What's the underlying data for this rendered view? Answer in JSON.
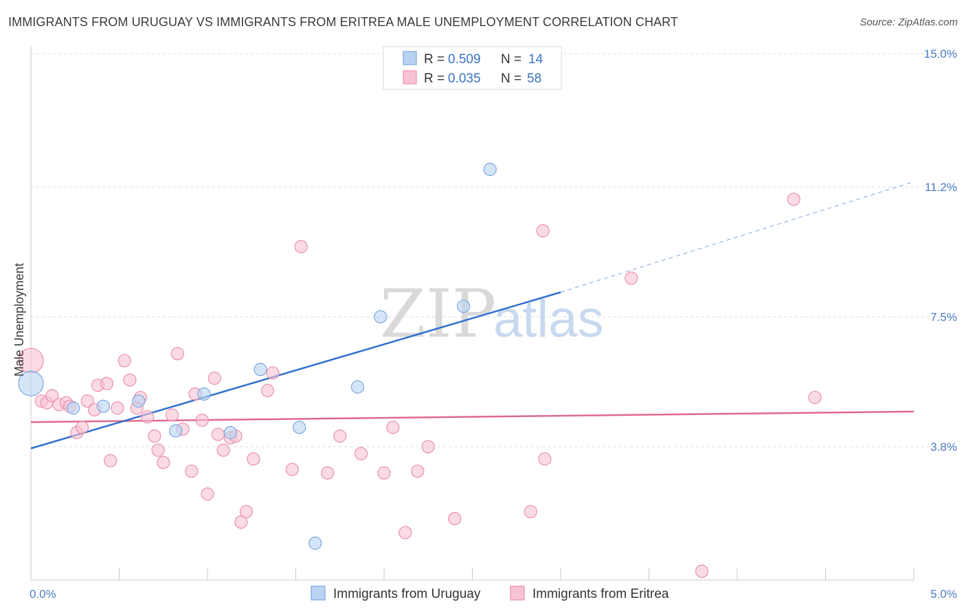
{
  "title": "IMMIGRANTS FROM URUGUAY VS IMMIGRANTS FROM ERITREA MALE UNEMPLOYMENT CORRELATION CHART",
  "source": "Source: ZipAtlas.com",
  "watermark": {
    "zip": "ZIP",
    "atlas": "atlas"
  },
  "colors": {
    "blue_fill": "#b9d3f3",
    "blue_stroke": "#7aa7de",
    "blue_line": "#2f6fcf",
    "pink_fill": "#f7c3d2",
    "pink_stroke": "#ea8fac",
    "pink_line": "#e06890",
    "grid": "#dddddd",
    "tick": "#4a7cc0"
  },
  "legend": {
    "rows": [
      {
        "r_label": "R =",
        "r_value": "0.509",
        "n_label": "N =",
        "n_value": "14"
      },
      {
        "r_label": "R =",
        "r_value": "0.035",
        "n_label": "N =",
        "n_value": "58"
      }
    ]
  },
  "chart_data": {
    "type": "scatter",
    "title": "IMMIGRANTS FROM URUGUAY VS IMMIGRANTS FROM ERITREA MALE UNEMPLOYMENT CORRELATION CHART",
    "xlabel": "",
    "ylabel": "Male Unemployment",
    "xlim": [
      0,
      5.0
    ],
    "ylim": [
      0,
      15.0
    ],
    "x_tick_labels": [
      {
        "value": 0,
        "label": "0.0%"
      },
      {
        "value": 5.0,
        "label": "5.0%"
      }
    ],
    "y_tick_labels": [
      {
        "value": 3.8,
        "label": "3.8%"
      },
      {
        "value": 7.5,
        "label": "7.5%"
      },
      {
        "value": 11.2,
        "label": "11.2%"
      },
      {
        "value": 15.0,
        "label": "15.0%"
      }
    ],
    "series": [
      {
        "name": "Immigrants from Uruguay",
        "color": "blue",
        "points": [
          {
            "x": 0.0,
            "y": 5.6,
            "size": "large"
          },
          {
            "x": 0.24,
            "y": 4.9
          },
          {
            "x": 0.41,
            "y": 4.95
          },
          {
            "x": 0.61,
            "y": 5.1
          },
          {
            "x": 0.82,
            "y": 4.25
          },
          {
            "x": 0.98,
            "y": 5.3
          },
          {
            "x": 1.13,
            "y": 4.2
          },
          {
            "x": 1.3,
            "y": 6.0
          },
          {
            "x": 1.52,
            "y": 4.35
          },
          {
            "x": 1.61,
            "y": 1.05
          },
          {
            "x": 1.85,
            "y": 5.5
          },
          {
            "x": 1.98,
            "y": 7.5
          },
          {
            "x": 2.45,
            "y": 7.8
          },
          {
            "x": 2.6,
            "y": 11.7
          }
        ],
        "trend": {
          "x": [
            0.0,
            3.0
          ],
          "y": [
            3.75,
            8.2
          ],
          "dashed_extension": {
            "x": [
              3.0,
              5.0
            ],
            "y": [
              8.2,
              11.35
            ]
          }
        }
      },
      {
        "name": "Immigrants from Eritrea",
        "color": "pink",
        "points": [
          {
            "x": 0.0,
            "y": 6.25,
            "size": "large"
          },
          {
            "x": 0.06,
            "y": 5.1
          },
          {
            "x": 0.09,
            "y": 5.05
          },
          {
            "x": 0.12,
            "y": 5.25
          },
          {
            "x": 0.16,
            "y": 5.0
          },
          {
            "x": 0.2,
            "y": 5.05
          },
          {
            "x": 0.22,
            "y": 4.95
          },
          {
            "x": 0.26,
            "y": 4.2
          },
          {
            "x": 0.29,
            "y": 4.35
          },
          {
            "x": 0.32,
            "y": 5.1
          },
          {
            "x": 0.36,
            "y": 4.85
          },
          {
            "x": 0.38,
            "y": 5.55
          },
          {
            "x": 0.43,
            "y": 5.6
          },
          {
            "x": 0.45,
            "y": 3.4
          },
          {
            "x": 0.49,
            "y": 4.9
          },
          {
            "x": 0.53,
            "y": 6.25
          },
          {
            "x": 0.56,
            "y": 5.7
          },
          {
            "x": 0.6,
            "y": 4.9
          },
          {
            "x": 0.62,
            "y": 5.2
          },
          {
            "x": 0.66,
            "y": 4.65
          },
          {
            "x": 0.7,
            "y": 4.1
          },
          {
            "x": 0.72,
            "y": 3.7
          },
          {
            "x": 0.75,
            "y": 3.35
          },
          {
            "x": 0.8,
            "y": 4.7
          },
          {
            "x": 0.83,
            "y": 6.45
          },
          {
            "x": 0.86,
            "y": 4.3
          },
          {
            "x": 0.91,
            "y": 3.1
          },
          {
            "x": 0.93,
            "y": 5.3
          },
          {
            "x": 0.97,
            "y": 4.55
          },
          {
            "x": 1.0,
            "y": 2.45
          },
          {
            "x": 1.04,
            "y": 5.75
          },
          {
            "x": 1.06,
            "y": 4.15
          },
          {
            "x": 1.09,
            "y": 3.7
          },
          {
            "x": 1.13,
            "y": 4.05
          },
          {
            "x": 1.16,
            "y": 4.1
          },
          {
            "x": 1.19,
            "y": 1.65
          },
          {
            "x": 1.22,
            "y": 1.95
          },
          {
            "x": 1.26,
            "y": 3.45
          },
          {
            "x": 1.34,
            "y": 5.4
          },
          {
            "x": 1.37,
            "y": 5.9
          },
          {
            "x": 1.48,
            "y": 3.15
          },
          {
            "x": 1.53,
            "y": 9.5
          },
          {
            "x": 1.68,
            "y": 3.05
          },
          {
            "x": 1.75,
            "y": 4.1
          },
          {
            "x": 1.87,
            "y": 3.6
          },
          {
            "x": 2.0,
            "y": 3.05
          },
          {
            "x": 2.05,
            "y": 4.35
          },
          {
            "x": 2.12,
            "y": 1.35
          },
          {
            "x": 2.19,
            "y": 3.1
          },
          {
            "x": 2.25,
            "y": 3.8
          },
          {
            "x": 2.4,
            "y": 1.75
          },
          {
            "x": 2.83,
            "y": 1.95
          },
          {
            "x": 2.9,
            "y": 9.95
          },
          {
            "x": 2.91,
            "y": 3.45
          },
          {
            "x": 3.4,
            "y": 8.6
          },
          {
            "x": 3.8,
            "y": 0.25
          },
          {
            "x": 4.32,
            "y": 10.85
          },
          {
            "x": 4.44,
            "y": 5.2
          }
        ],
        "trend": {
          "x": [
            0.0,
            5.0
          ],
          "y": [
            4.5,
            4.8
          ]
        }
      }
    ],
    "legend_position": "top-center",
    "grid": true
  }
}
